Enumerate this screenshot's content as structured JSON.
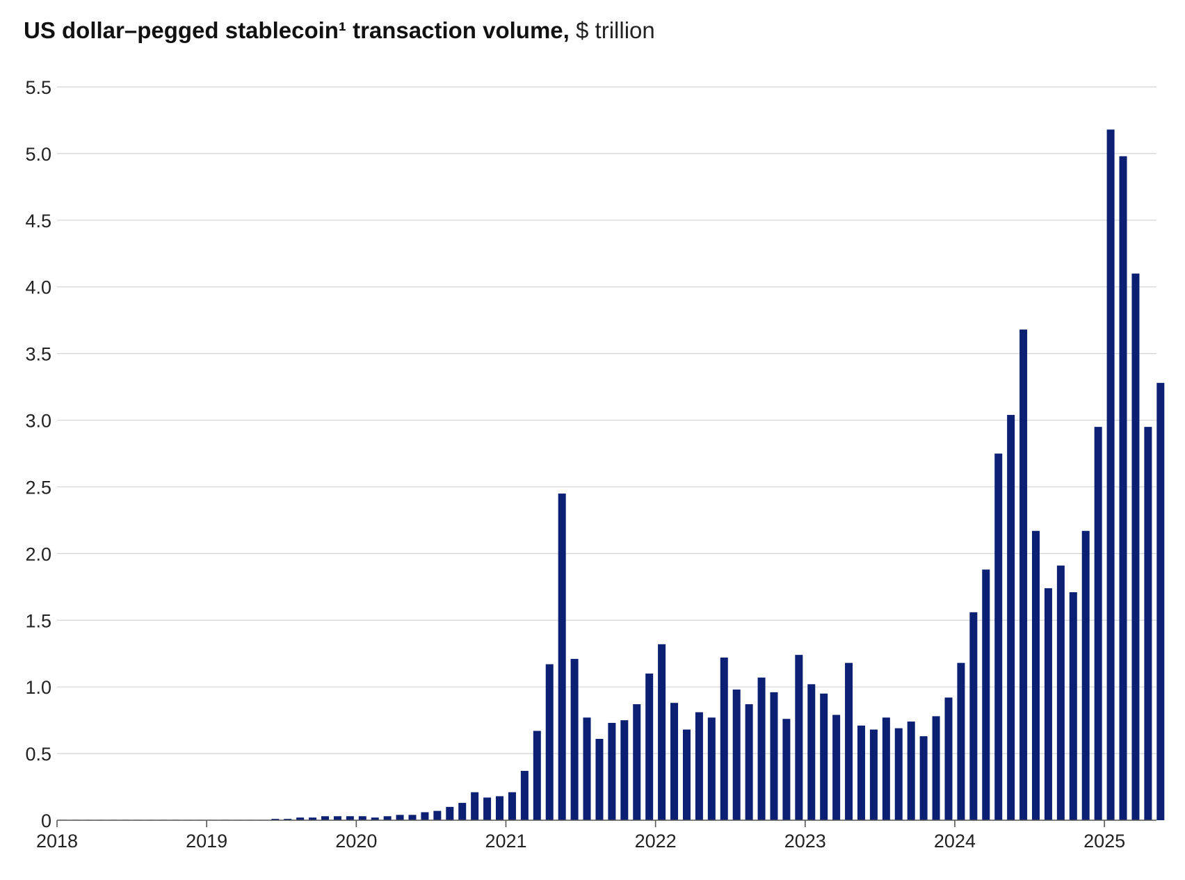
{
  "chart_data": {
    "type": "bar",
    "title_bold": "US dollar–pegged stablecoin¹ transaction volume,",
    "title_unit": "$ trillion",
    "xlabel": "",
    "ylabel": "",
    "ylim": [
      0,
      5.5
    ],
    "yticks": [
      "0",
      "0.5",
      "1.0",
      "1.5",
      "2.0",
      "2.5",
      "3.0",
      "3.5",
      "4.0",
      "4.5",
      "5.0",
      "5.5"
    ],
    "ytick_values": [
      0,
      0.5,
      1.0,
      1.5,
      2.0,
      2.5,
      3.0,
      3.5,
      4.0,
      4.5,
      5.0,
      5.5
    ],
    "xticks": [
      "2018",
      "2019",
      "2020",
      "2021",
      "2022",
      "2023",
      "2024",
      "2025"
    ],
    "xtick_values": [
      0,
      12,
      24,
      36,
      48,
      60,
      72,
      84
    ],
    "grid": true,
    "bar_color": "#0b1f73",
    "grid_color": "#d4d4d4",
    "series": [
      {
        "name": "Monthly transaction volume",
        "start": "2018-01",
        "values": [
          0.0,
          0.0,
          0.0,
          0.0,
          0.0,
          0.0,
          0.0,
          0.0,
          0.0,
          0.0,
          0.0,
          0.0,
          0.0,
          0.0,
          0.0,
          0.0,
          0.0,
          0.01,
          0.01,
          0.02,
          0.02,
          0.03,
          0.03,
          0.03,
          0.03,
          0.02,
          0.03,
          0.04,
          0.04,
          0.06,
          0.07,
          0.1,
          0.13,
          0.21,
          0.17,
          0.18,
          0.21,
          0.37,
          0.67,
          1.17,
          2.45,
          1.21,
          0.77,
          0.61,
          0.73,
          0.75,
          0.87,
          1.1,
          1.32,
          0.88,
          0.68,
          0.81,
          0.77,
          1.22,
          0.98,
          0.87,
          1.07,
          0.96,
          0.76,
          1.24,
          1.02,
          0.95,
          0.79,
          1.18,
          0.71,
          0.68,
          0.77,
          0.69,
          0.74,
          0.63,
          0.78,
          0.92,
          1.18,
          1.56,
          1.88,
          2.75,
          3.04,
          3.68,
          2.17,
          1.74,
          1.91,
          1.71,
          2.17,
          2.95,
          5.18,
          4.98,
          4.1,
          2.95,
          3.28
        ]
      }
    ]
  }
}
